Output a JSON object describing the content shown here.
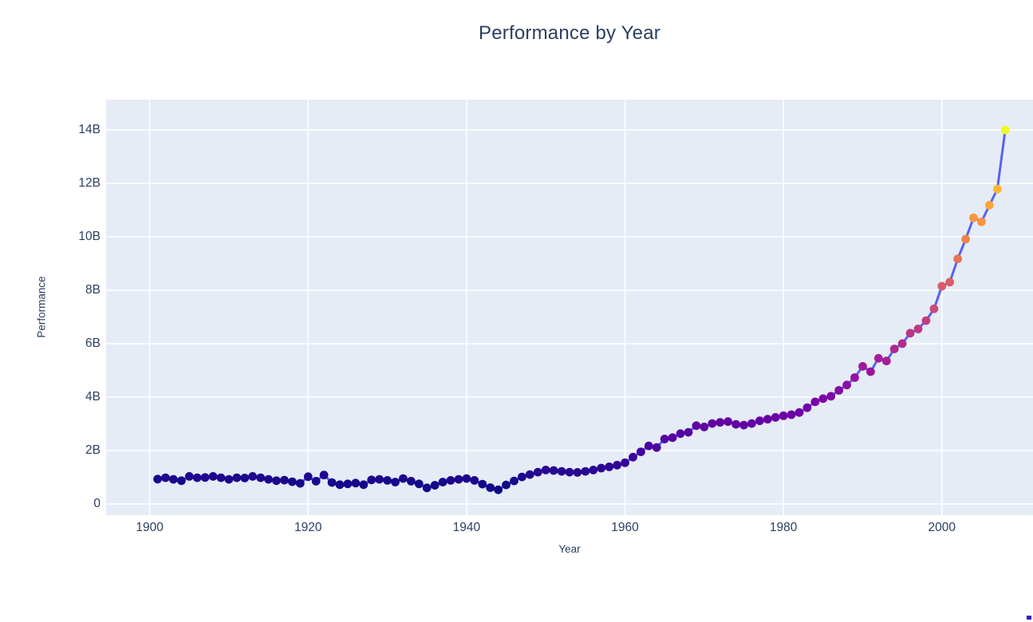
{
  "title": "Performance by Year",
  "chart_data": {
    "type": "line",
    "title": "Performance by Year",
    "xlabel": "Year",
    "ylabel": "Performance",
    "x": [
      1901,
      1902,
      1903,
      1904,
      1905,
      1906,
      1907,
      1908,
      1909,
      1910,
      1911,
      1912,
      1913,
      1914,
      1915,
      1916,
      1917,
      1918,
      1919,
      1920,
      1921,
      1922,
      1923,
      1924,
      1925,
      1926,
      1927,
      1928,
      1929,
      1930,
      1931,
      1932,
      1933,
      1934,
      1935,
      1936,
      1937,
      1938,
      1939,
      1940,
      1941,
      1942,
      1943,
      1944,
      1945,
      1946,
      1947,
      1948,
      1949,
      1950,
      1951,
      1952,
      1953,
      1954,
      1955,
      1956,
      1957,
      1958,
      1959,
      1960,
      1961,
      1962,
      1963,
      1964,
      1965,
      1966,
      1967,
      1968,
      1969,
      1970,
      1971,
      1972,
      1973,
      1974,
      1975,
      1976,
      1977,
      1978,
      1979,
      1980,
      1981,
      1982,
      1983,
      1984,
      1985,
      1986,
      1987,
      1988,
      1989,
      1990,
      1991,
      1992,
      1993,
      1994,
      1995,
      1996,
      1997,
      1998,
      1999,
      2000,
      2001,
      2002,
      2003,
      2004,
      2005,
      2006,
      2007,
      2008
    ],
    "values_billions": [
      0.93,
      0.98,
      0.92,
      0.87,
      1.03,
      0.98,
      0.99,
      1.03,
      0.98,
      0.92,
      0.98,
      0.97,
      1.03,
      0.98,
      0.92,
      0.87,
      0.89,
      0.83,
      0.77,
      1.02,
      0.85,
      1.08,
      0.8,
      0.72,
      0.75,
      0.78,
      0.72,
      0.9,
      0.92,
      0.88,
      0.82,
      0.95,
      0.85,
      0.75,
      0.6,
      0.7,
      0.82,
      0.88,
      0.92,
      0.95,
      0.88,
      0.74,
      0.61,
      0.53,
      0.71,
      0.86,
      1.01,
      1.1,
      1.19,
      1.27,
      1.25,
      1.22,
      1.19,
      1.18,
      1.22,
      1.27,
      1.34,
      1.39,
      1.45,
      1.54,
      1.75,
      1.95,
      2.17,
      2.11,
      2.43,
      2.48,
      2.63,
      2.68,
      2.93,
      2.88,
      3.01,
      3.05,
      3.08,
      2.98,
      2.95,
      3.01,
      3.11,
      3.17,
      3.24,
      3.3,
      3.34,
      3.42,
      3.6,
      3.82,
      3.94,
      4.03,
      4.25,
      4.45,
      4.73,
      5.15,
      4.95,
      5.45,
      5.35,
      5.8,
      6.0,
      6.39,
      6.55,
      6.86,
      7.3,
      8.15,
      8.3,
      9.17,
      9.91,
      10.71,
      10.56,
      11.18,
      11.78,
      14.0
    ],
    "x_ticks": [
      1900,
      1920,
      1940,
      1960,
      1980,
      2000
    ],
    "y_ticks": [
      {
        "v": 0,
        "label": "0"
      },
      {
        "v": 2,
        "label": "2B"
      },
      {
        "v": 4,
        "label": "4B"
      },
      {
        "v": 6,
        "label": "6B"
      },
      {
        "v": 8,
        "label": "8B"
      },
      {
        "v": 10,
        "label": "10B"
      },
      {
        "v": 12,
        "label": "12B"
      },
      {
        "v": 14,
        "label": "14B"
      }
    ],
    "x_range": [
      1894.5,
      2011.5
    ],
    "y_range": [
      -0.42,
      15.13
    ],
    "grid": true,
    "legend": "none",
    "line_color": "#5663f0",
    "plot_bg": "#e5ecf6",
    "grid_color": "#ffffff",
    "text_color": "#2a3f5f",
    "marker_colorscale": "Plasma",
    "colorscale_stops": [
      [
        0.0,
        "#0d0887"
      ],
      [
        0.1111,
        "#46039f"
      ],
      [
        0.2222,
        "#7201a8"
      ],
      [
        0.3333,
        "#9c179e"
      ],
      [
        0.4444,
        "#bd3786"
      ],
      [
        0.5556,
        "#d8576b"
      ],
      [
        0.6667,
        "#ed7953"
      ],
      [
        0.7778,
        "#fb9f3a"
      ],
      [
        0.8889,
        "#fdca26"
      ],
      [
        1.0,
        "#f0f921"
      ]
    ],
    "color_min": 0.53,
    "color_max": 14.0
  },
  "corner_artifact_color": "#2a1fd6"
}
